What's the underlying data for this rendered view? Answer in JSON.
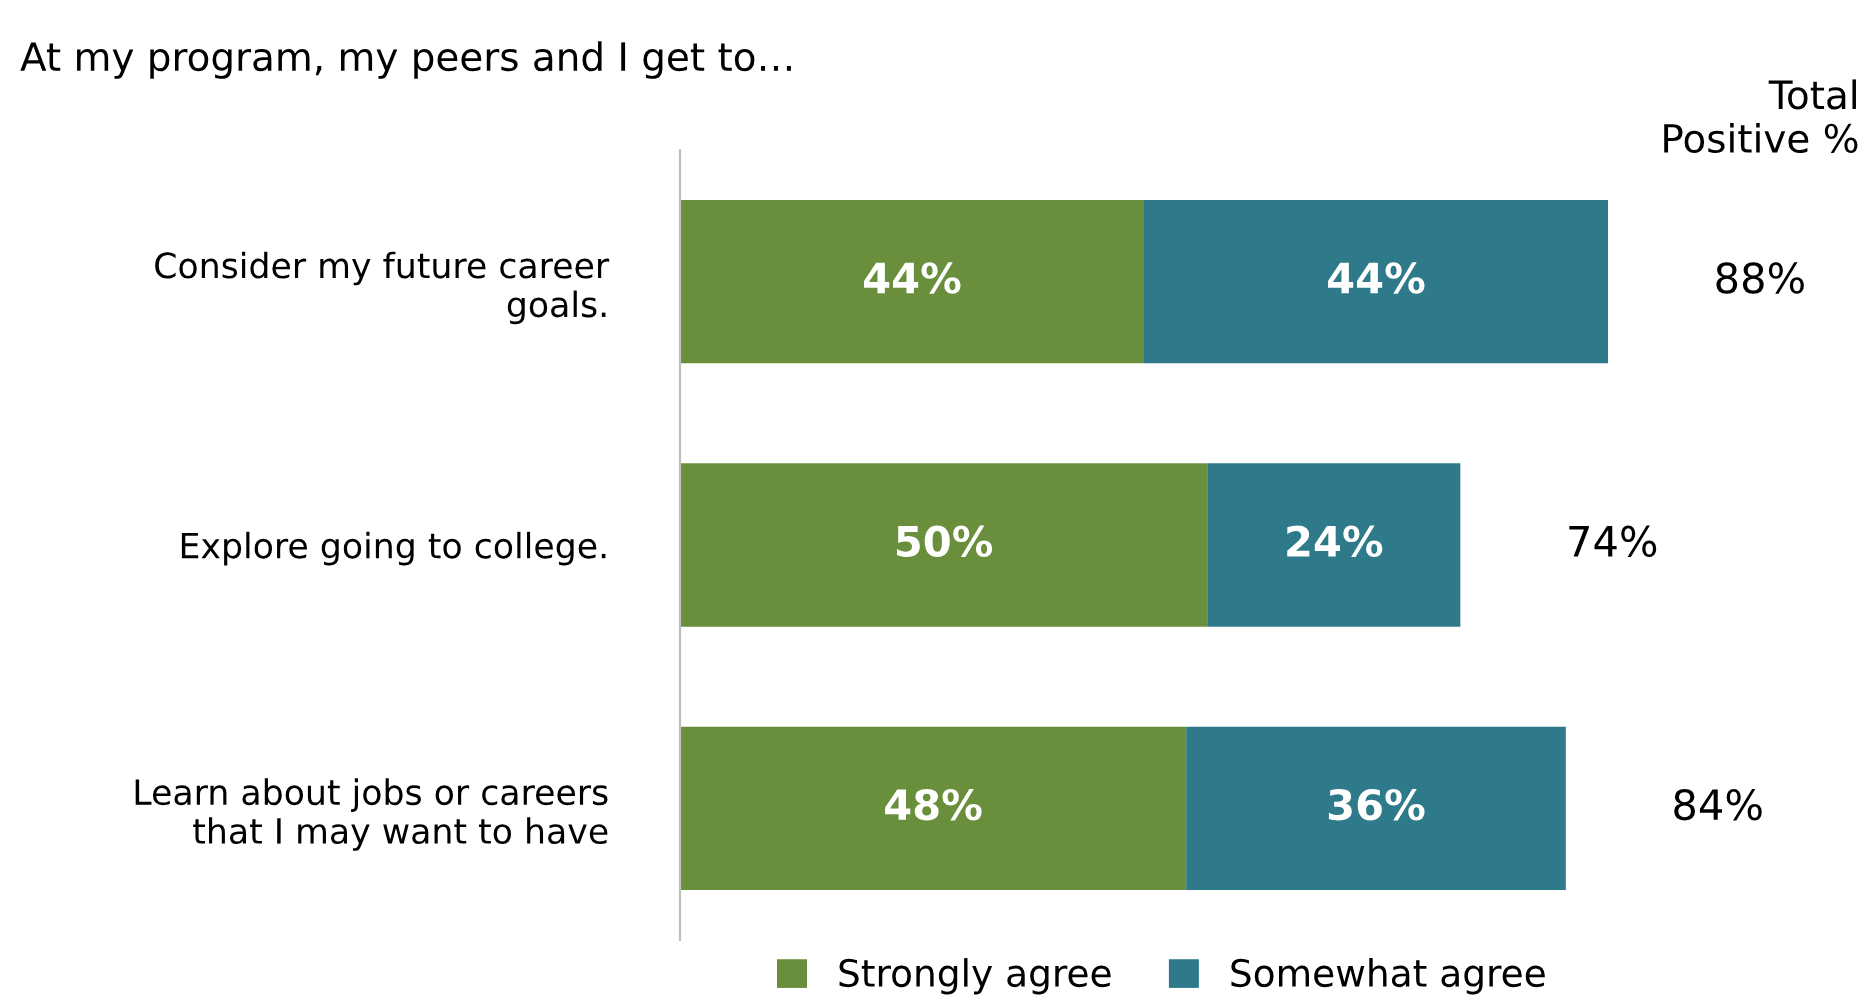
{
  "chart_data": {
    "type": "bar",
    "orientation": "horizontal",
    "stacked": true,
    "title": "At my program, my peers and I get to…",
    "categories": [
      "Consider my future career goals.",
      "Explore going to college.",
      "Learn about jobs or careers that I may want to have"
    ],
    "series": [
      {
        "name": "Strongly agree",
        "color": "#6a8f3c",
        "values": [
          44,
          50,
          48
        ],
        "value_labels": [
          "44%",
          "50%",
          "48%"
        ]
      },
      {
        "name": "Somewhat agree",
        "color": "#2f7a8a",
        "values": [
          44,
          24,
          36
        ],
        "value_labels": [
          "44%",
          "24%",
          "36%"
        ]
      }
    ],
    "tick_labels": "y",
    "totals": [
      "88%",
      "74%",
      "84%"
    ],
    "annotations": [
      "Total\nPositive %"
    ],
    "legend": "bottom",
    "grid": false
  }
}
